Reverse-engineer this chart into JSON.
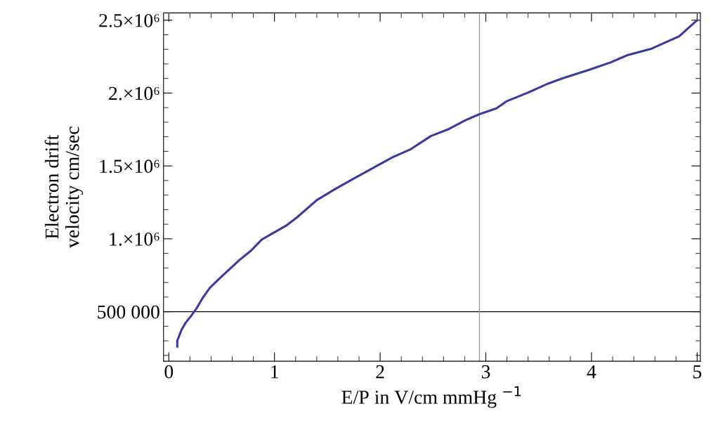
{
  "chart_data": {
    "type": "line",
    "xlabel": "E/P in V/cm mmHg $^{−1}$",
    "ylabel": "Electron drift\nvelocity cm/sec",
    "x": [
      0.08,
      0.08,
      0.12,
      0.16,
      0.2,
      0.26,
      0.33,
      0.39,
      0.49,
      0.67,
      0.78,
      0.88,
      1.11,
      1.21,
      1.4,
      1.57,
      1.73,
      1.98,
      2.12,
      2.29,
      2.48,
      2.64,
      2.81,
      2.94,
      3.1,
      3.2,
      3.39,
      3.59,
      3.72,
      3.98,
      4.18,
      4.34,
      4.57,
      4.83,
      5.0
    ],
    "series": [
      {
        "color": "#3a3aa0",
        "values": [
          260000,
          300000,
          375000,
          425000,
          460000,
          520000,
          605000,
          665000,
          735000,
          855000,
          920000,
          995000,
          1090000,
          1145000,
          1265000,
          1340000,
          1405000,
          1505000,
          1560000,
          1615000,
          1705000,
          1750000,
          1815000,
          1855000,
          1895000,
          1945000,
          2000000,
          2065000,
          2100000,
          2160000,
          2210000,
          2260000,
          2305000,
          2390000,
          2500000
        ]
      }
    ],
    "xlim": [
      -0.05,
      5.03
    ],
    "ylim": [
      160000,
      2550000
    ],
    "xticks": [
      0,
      1,
      2,
      3,
      4,
      5
    ],
    "yticks": [
      {
        "value": 500000,
        "label": "500 000"
      },
      {
        "value": 1000000,
        "label": "1.×10⁶"
      },
      {
        "value": 1500000,
        "label": "1.5×10⁶"
      },
      {
        "value": 2000000,
        "label": "2.×10⁶"
      },
      {
        "value": 2500000,
        "label": "2.5×10⁶"
      }
    ],
    "ref_lines": [
      {
        "axis": "y",
        "value": 500000,
        "color": "#000000"
      },
      {
        "axis": "x",
        "value": 2.94,
        "color": "#999999"
      }
    ],
    "grid": false,
    "legend": false,
    "marker": "none",
    "line_style": "solid"
  }
}
